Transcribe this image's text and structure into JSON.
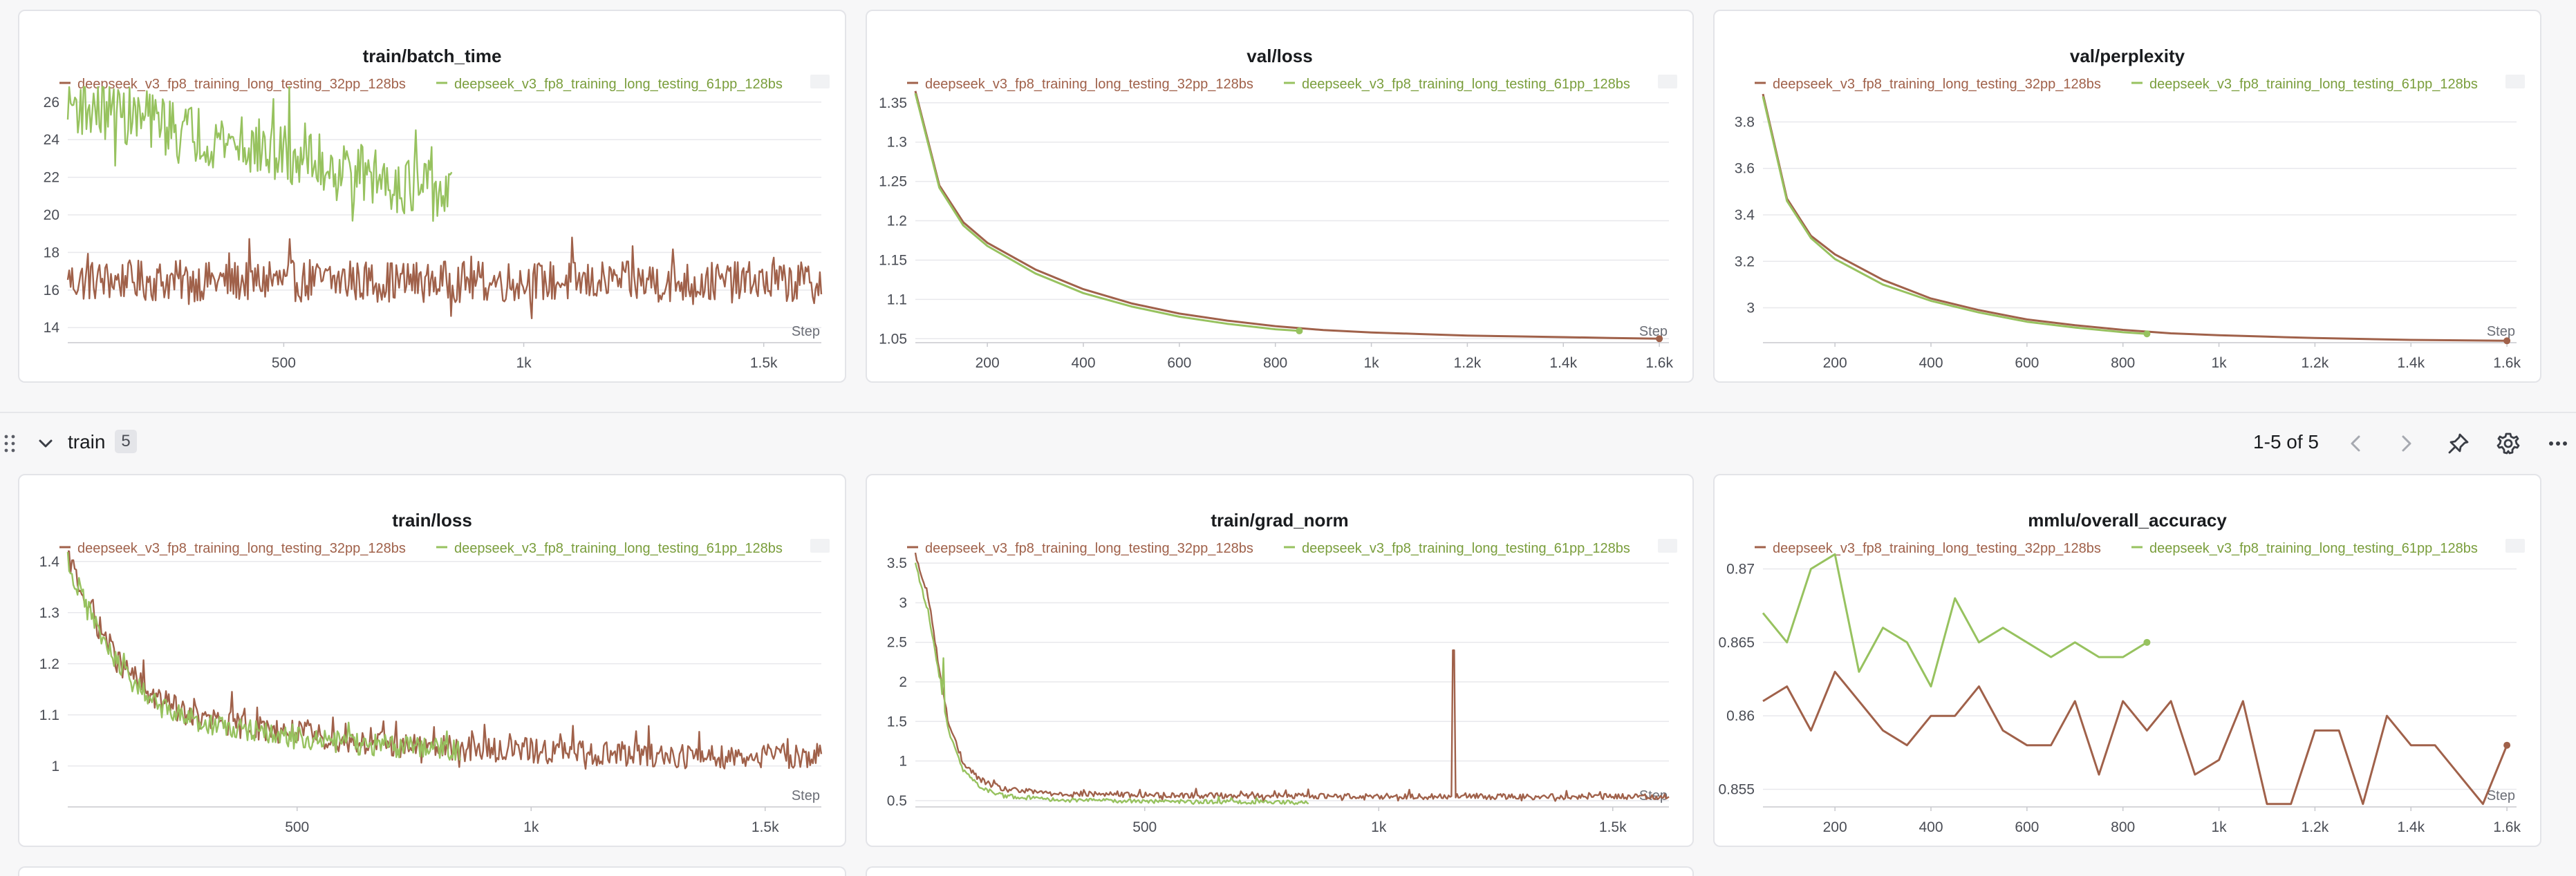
{
  "section": {
    "title": "train",
    "count": "5",
    "pager": "1-5 of 5"
  },
  "colors": {
    "run_a": "#a0614a",
    "run_b": "#97c25f",
    "legend_a_text": "#a0614a",
    "legend_b_text": "#7a9e3c",
    "grid": "#e8e8ec",
    "tick": "#4a4d55"
  },
  "icons": [
    "drag-handle-icon",
    "chevron-down-icon",
    "chevron-left-icon",
    "chevron-right-icon",
    "pin-icon",
    "gear-icon",
    "more-icon"
  ],
  "chart_data": [
    {
      "id": "c1",
      "type": "line",
      "title": "train/batch_time",
      "step_label": "Step",
      "xlim": [
        50,
        1620
      ],
      "ylim": [
        13.2,
        26.8
      ],
      "xticks": [
        500,
        1000,
        1500
      ],
      "xtick_labels": [
        "500",
        "1k",
        "1.5k"
      ],
      "yticks": [
        14,
        16,
        18,
        20,
        22,
        24,
        26
      ],
      "ytick_labels": [
        "14",
        "16",
        "18",
        "20",
        "22",
        "24",
        "26"
      ],
      "series": [
        {
          "name": "deepseek_v3_fp8_training_long_testing_32pp_128bs",
          "color": "#a0614a",
          "noisy": true,
          "x_end": 1620,
          "base": 16.2,
          "amp": 1.1,
          "spike_every": 14,
          "spike_amp": 1.5,
          "anchors": [
            [
              50,
              16.5
            ],
            [
              1620,
              16.4
            ]
          ]
        },
        {
          "name": "deepseek_v3_fp8_training_long_testing_61pp_128bs",
          "color": "#97c25f",
          "noisy": true,
          "x_end": 850,
          "base": 22.5,
          "amp": 1.6,
          "spike_every": 11,
          "spike_amp": 2.5,
          "anchors": [
            [
              50,
              26
            ],
            [
              850,
              21
            ]
          ]
        }
      ]
    },
    {
      "id": "c2",
      "type": "line",
      "title": "val/loss",
      "step_label": "Step",
      "xlim": [
        50,
        1620
      ],
      "ylim": [
        1.045,
        1.37
      ],
      "xticks": [
        200,
        400,
        600,
        800,
        1000,
        1200,
        1400,
        1600
      ],
      "xtick_labels": [
        "200",
        "400",
        "600",
        "800",
        "1k",
        "1.2k",
        "1.4k",
        "1.6k"
      ],
      "yticks": [
        1.05,
        1.1,
        1.15,
        1.2,
        1.25,
        1.3,
        1.35
      ],
      "ytick_labels": [
        "1.05",
        "1.1",
        "1.15",
        "1.2",
        "1.25",
        "1.3",
        "1.35"
      ],
      "series": [
        {
          "name": "deepseek_v3_fp8_training_long_testing_32pp_128bs",
          "color": "#a0614a",
          "end_dot": true,
          "points": [
            [
              50,
              1.365
            ],
            [
              100,
              1.245
            ],
            [
              150,
              1.198
            ],
            [
              200,
              1.172
            ],
            [
              300,
              1.138
            ],
            [
              400,
              1.113
            ],
            [
              500,
              1.095
            ],
            [
              600,
              1.082
            ],
            [
              700,
              1.073
            ],
            [
              800,
              1.066
            ],
            [
              900,
              1.061
            ],
            [
              1000,
              1.058
            ],
            [
              1100,
              1.056
            ],
            [
              1200,
              1.054
            ],
            [
              1300,
              1.053
            ],
            [
              1400,
              1.052
            ],
            [
              1500,
              1.051
            ],
            [
              1600,
              1.05
            ]
          ]
        },
        {
          "name": "deepseek_v3_fp8_training_long_testing_61pp_128bs",
          "color": "#97c25f",
          "end_dot": true,
          "points": [
            [
              50,
              1.362
            ],
            [
              100,
              1.242
            ],
            [
              150,
              1.194
            ],
            [
              200,
              1.168
            ],
            [
              300,
              1.133
            ],
            [
              400,
              1.108
            ],
            [
              500,
              1.091
            ],
            [
              600,
              1.078
            ],
            [
              700,
              1.069
            ],
            [
              800,
              1.062
            ],
            [
              850,
              1.06
            ]
          ]
        }
      ]
    },
    {
      "id": "c3",
      "type": "line",
      "title": "val/perplexity",
      "step_label": "Step",
      "xlim": [
        50,
        1620
      ],
      "ylim": [
        2.85,
        3.95
      ],
      "xticks": [
        200,
        400,
        600,
        800,
        1000,
        1200,
        1400,
        1600
      ],
      "xtick_labels": [
        "200",
        "400",
        "600",
        "800",
        "1k",
        "1.2k",
        "1.4k",
        "1.6k"
      ],
      "yticks": [
        3,
        3.2,
        3.4,
        3.6,
        3.8
      ],
      "ytick_labels": [
        "3",
        "3.2",
        "3.4",
        "3.6",
        "3.8"
      ],
      "series": [
        {
          "name": "deepseek_v3_fp8_training_long_testing_32pp_128bs",
          "color": "#a0614a",
          "end_dot": true,
          "points": [
            [
              50,
              3.92
            ],
            [
              100,
              3.47
            ],
            [
              150,
              3.31
            ],
            [
              200,
              3.23
            ],
            [
              300,
              3.12
            ],
            [
              400,
              3.04
            ],
            [
              500,
              2.99
            ],
            [
              600,
              2.95
            ],
            [
              700,
              2.925
            ],
            [
              800,
              2.905
            ],
            [
              900,
              2.89
            ],
            [
              1000,
              2.882
            ],
            [
              1100,
              2.876
            ],
            [
              1200,
              2.87
            ],
            [
              1300,
              2.866
            ],
            [
              1400,
              2.862
            ],
            [
              1500,
              2.86
            ],
            [
              1600,
              2.858
            ]
          ]
        },
        {
          "name": "deepseek_v3_fp8_training_long_testing_61pp_128bs",
          "color": "#97c25f",
          "end_dot": true,
          "points": [
            [
              50,
              3.91
            ],
            [
              100,
              3.46
            ],
            [
              150,
              3.3
            ],
            [
              200,
              3.21
            ],
            [
              300,
              3.1
            ],
            [
              400,
              3.03
            ],
            [
              500,
              2.98
            ],
            [
              600,
              2.94
            ],
            [
              700,
              2.915
            ],
            [
              800,
              2.895
            ],
            [
              850,
              2.888
            ]
          ]
        }
      ]
    },
    {
      "id": "c4",
      "type": "line",
      "title": "train/loss",
      "step_label": "Step",
      "xlim": [
        10,
        1620
      ],
      "ylim": [
        0.92,
        1.42
      ],
      "xticks": [
        500,
        1000,
        1500
      ],
      "xtick_labels": [
        "500",
        "1k",
        "1.5k"
      ],
      "yticks": [
        1,
        1.1,
        1.2,
        1.3,
        1.4
      ],
      "ytick_labels": [
        "1",
        "1.1",
        "1.2",
        "1.3",
        "1.4"
      ],
      "series": [
        {
          "name": "deepseek_v3_fp8_training_long_testing_32pp_128bs",
          "color": "#a0614a",
          "noisy": true,
          "x_end": 1620,
          "amp": 0.025,
          "spike_every": 9,
          "spike_amp": 0.035,
          "anchors": [
            [
              10,
              1.41
            ],
            [
              60,
              1.3
            ],
            [
              120,
              1.2
            ],
            [
              200,
              1.13
            ],
            [
              300,
              1.09
            ],
            [
              450,
              1.07
            ],
            [
              600,
              1.05
            ],
            [
              800,
              1.035
            ],
            [
              1000,
              1.03
            ],
            [
              1300,
              1.02
            ],
            [
              1620,
              1.02
            ]
          ]
        },
        {
          "name": "deepseek_v3_fp8_training_long_testing_61pp_128bs",
          "color": "#97c25f",
          "noisy": true,
          "x_end": 850,
          "amp": 0.022,
          "spike_every": 10,
          "spike_amp": 0.03,
          "anchors": [
            [
              10,
              1.4
            ],
            [
              60,
              1.29
            ],
            [
              120,
              1.19
            ],
            [
              200,
              1.12
            ],
            [
              300,
              1.085
            ],
            [
              450,
              1.06
            ],
            [
              600,
              1.045
            ],
            [
              850,
              1.03
            ]
          ]
        }
      ]
    },
    {
      "id": "c5",
      "type": "line",
      "title": "train/grad_norm",
      "step_label": "Step",
      "xlim": [
        10,
        1620
      ],
      "ylim": [
        0.42,
        3.65
      ],
      "xticks": [
        500,
        1000,
        1500
      ],
      "xtick_labels": [
        "500",
        "1k",
        "1.5k"
      ],
      "yticks": [
        0.5,
        1,
        1.5,
        2,
        2.5,
        3,
        3.5
      ],
      "ytick_labels": [
        "0.5",
        "1",
        "1.5",
        "2",
        "2.5",
        "3",
        "3.5"
      ],
      "series": [
        {
          "name": "deepseek_v3_fp8_training_long_testing_32pp_128bs",
          "color": "#a0614a",
          "noisy": true,
          "x_end": 1620,
          "amp": 0.035,
          "spike_every": 8,
          "spike_amp": 0.06,
          "anchors": [
            [
              10,
              3.6
            ],
            [
              40,
              3.0
            ],
            [
              60,
              2.2
            ],
            [
              80,
              1.5
            ],
            [
              110,
              1.0
            ],
            [
              150,
              0.75
            ],
            [
              200,
              0.64
            ],
            [
              300,
              0.59
            ],
            [
              500,
              0.57
            ],
            [
              800,
              0.56
            ],
            [
              1100,
              0.55
            ],
            [
              1620,
              0.55
            ]
          ],
          "spikes": [
            [
              1160,
              2.4
            ]
          ]
        },
        {
          "name": "deepseek_v3_fp8_training_long_testing_61pp_128bs",
          "color": "#97c25f",
          "noisy": true,
          "x_end": 850,
          "amp": 0.025,
          "spike_every": 9,
          "spike_amp": 0.05,
          "anchors": [
            [
              10,
              3.5
            ],
            [
              40,
              2.8
            ],
            [
              60,
              2.1
            ],
            [
              80,
              1.4
            ],
            [
              110,
              0.9
            ],
            [
              150,
              0.66
            ],
            [
              200,
              0.56
            ],
            [
              300,
              0.51
            ],
            [
              500,
              0.49
            ],
            [
              850,
              0.48
            ]
          ],
          "spikes": [
            [
              70,
              2.3
            ]
          ]
        }
      ]
    },
    {
      "id": "c6",
      "type": "line",
      "title": "mmlu/overall_accuracy",
      "step_label": "Step",
      "xlim": [
        50,
        1620
      ],
      "ylim": [
        0.8538,
        0.8712
      ],
      "xticks": [
        200,
        400,
        600,
        800,
        1000,
        1200,
        1400,
        1600
      ],
      "xtick_labels": [
        "200",
        "400",
        "600",
        "800",
        "1k",
        "1.2k",
        "1.4k",
        "1.6k"
      ],
      "yticks": [
        0.855,
        0.86,
        0.865,
        0.87
      ],
      "ytick_labels": [
        "0.855",
        "0.86",
        "0.865",
        "0.87"
      ],
      "series": [
        {
          "name": "deepseek_v3_fp8_training_long_testing_32pp_128bs",
          "color": "#a0614a",
          "end_dot": true,
          "points": [
            [
              50,
              0.861
            ],
            [
              100,
              0.862
            ],
            [
              150,
              0.859
            ],
            [
              200,
              0.863
            ],
            [
              250,
              0.861
            ],
            [
              300,
              0.859
            ],
            [
              350,
              0.858
            ],
            [
              400,
              0.86
            ],
            [
              450,
              0.86
            ],
            [
              500,
              0.862
            ],
            [
              550,
              0.859
            ],
            [
              600,
              0.858
            ],
            [
              650,
              0.858
            ],
            [
              700,
              0.861
            ],
            [
              750,
              0.856
            ],
            [
              800,
              0.861
            ],
            [
              850,
              0.859
            ],
            [
              900,
              0.861
            ],
            [
              950,
              0.856
            ],
            [
              1000,
              0.857
            ],
            [
              1050,
              0.861
            ],
            [
              1100,
              0.854
            ],
            [
              1150,
              0.854
            ],
            [
              1200,
              0.859
            ],
            [
              1250,
              0.859
            ],
            [
              1300,
              0.854
            ],
            [
              1350,
              0.86
            ],
            [
              1400,
              0.858
            ],
            [
              1450,
              0.858
            ],
            [
              1500,
              0.856
            ],
            [
              1550,
              0.854
            ],
            [
              1600,
              0.858
            ]
          ]
        },
        {
          "name": "deepseek_v3_fp8_training_long_testing_61pp_128bs",
          "color": "#97c25f",
          "end_dot": true,
          "points": [
            [
              50,
              0.867
            ],
            [
              100,
              0.865
            ],
            [
              150,
              0.87
            ],
            [
              200,
              0.871
            ],
            [
              250,
              0.863
            ],
            [
              300,
              0.866
            ],
            [
              350,
              0.865
            ],
            [
              400,
              0.862
            ],
            [
              450,
              0.868
            ],
            [
              500,
              0.865
            ],
            [
              550,
              0.866
            ],
            [
              600,
              0.865
            ],
            [
              650,
              0.864
            ],
            [
              700,
              0.865
            ],
            [
              750,
              0.864
            ],
            [
              800,
              0.864
            ],
            [
              850,
              0.865
            ]
          ]
        }
      ]
    }
  ]
}
